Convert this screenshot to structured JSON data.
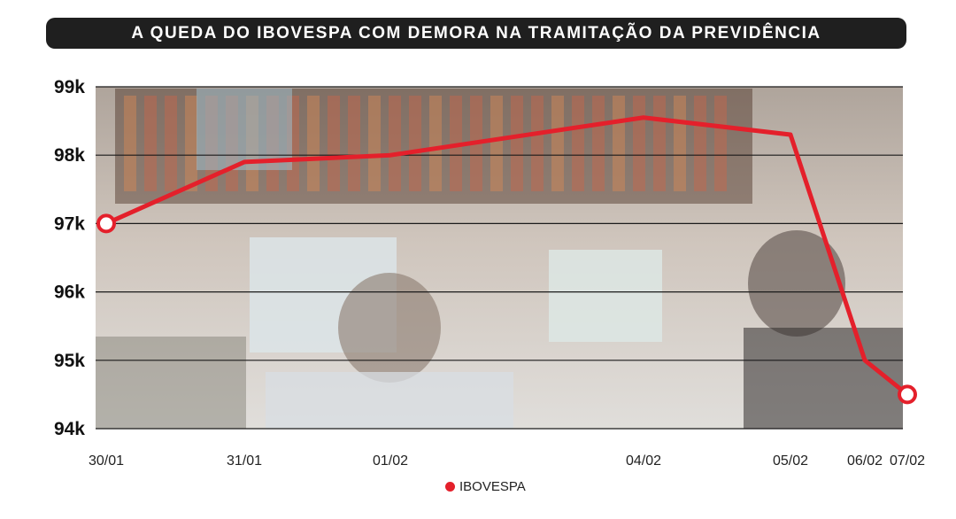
{
  "chart_data": {
    "type": "line",
    "title": "A QUEDA DO IBOVESPA COM DEMORA NA TRAMITAÇÃO DA PREVIDÊNCIA",
    "xlabel": "",
    "ylabel": "",
    "categories": [
      "30/01",
      "31/01",
      "01/02",
      "04/02",
      "05/02",
      "06/02",
      "07/02"
    ],
    "y_ticks": [
      "99k",
      "98k",
      "97k",
      "96k",
      "95k",
      "94k"
    ],
    "ylim": [
      94000,
      99000
    ],
    "grid": true,
    "legend_position": "bottom",
    "series": [
      {
        "name": "IBOVESPA",
        "color": "#e4202b",
        "values": [
          97000,
          97900,
          98000,
          98550,
          98300,
          95000,
          94500
        ]
      }
    ],
    "background": "photo of stock exchange trading floor"
  },
  "colors": {
    "series": "#e4202b",
    "title_bar": "#1f1f1f",
    "grid": "#1a1a1a"
  }
}
